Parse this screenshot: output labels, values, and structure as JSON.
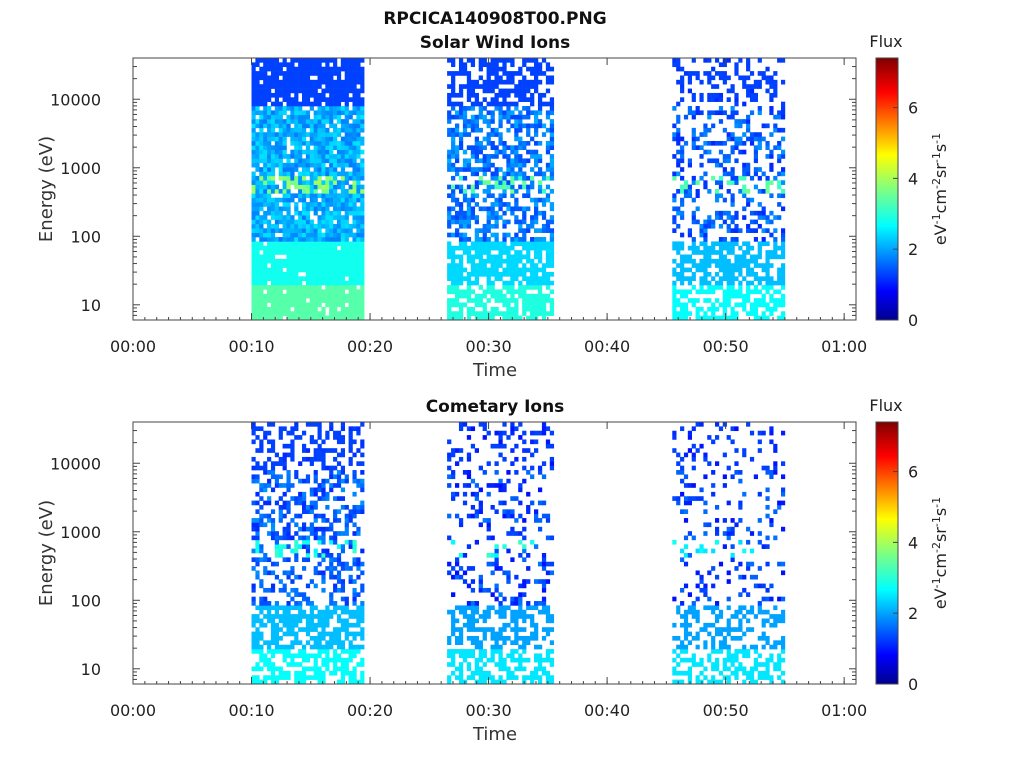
{
  "figure_title": "RPCICA140908T00.PNG",
  "colorbar_unit": "eV-1cm-2sr-1s-1",
  "colormap": [
    "#00008f",
    "#0000ff",
    "#0080ff",
    "#00ffff",
    "#80ff80",
    "#ffff00",
    "#ff8000",
    "#ff0000",
    "#800000"
  ],
  "chart_data": [
    {
      "type": "heatmap",
      "title": "Solar Wind Ions",
      "xlabel": "Time",
      "ylabel": "Energy (eV)",
      "y_scale": "log",
      "xlim": [
        "00:00",
        "01:01"
      ],
      "ylim": [
        6,
        40000
      ],
      "x_ticks": [
        "00:00",
        "00:10",
        "00:20",
        "00:30",
        "00:40",
        "00:50",
        "01:00"
      ],
      "y_ticks": [
        "10",
        "100",
        "1000",
        "10000"
      ],
      "colorbar": {
        "label": "Flux",
        "range": [
          0,
          7.4
        ],
        "ticks": [
          "0",
          "2",
          "4",
          "6"
        ]
      },
      "blocks": [
        {
          "t_start": "00:10",
          "t_end": "00:19:30",
          "typical_flux": 2.2,
          "peak_flux": 4.0,
          "peak_energy_eV": 600
        },
        {
          "t_start": "00:26:30",
          "t_end": "00:35:30",
          "typical_flux": 1.8,
          "peak_flux": 3.6,
          "peak_energy_eV": 600
        },
        {
          "t_start": "00:45:30",
          "t_end": "00:55",
          "typical_flux": 1.6,
          "peak_flux": 3.6,
          "peak_energy_eV": 600
        }
      ]
    },
    {
      "type": "heatmap",
      "title": "Cometary Ions",
      "xlabel": "Time",
      "ylabel": "Energy (eV)",
      "y_scale": "log",
      "xlim": [
        "00:00",
        "01:01"
      ],
      "ylim": [
        6,
        40000
      ],
      "x_ticks": [
        "00:00",
        "00:10",
        "00:20",
        "00:30",
        "00:40",
        "00:50",
        "01:00"
      ],
      "y_ticks": [
        "10",
        "100",
        "1000",
        "10000"
      ],
      "colorbar": {
        "label": "Flux",
        "range": [
          0,
          7.4
        ],
        "ticks": [
          "0",
          "2",
          "4",
          "6"
        ]
      },
      "blocks": [
        {
          "t_start": "00:10",
          "t_end": "00:19:30",
          "typical_flux": 1.6,
          "peak_flux": 3.2,
          "peak_energy_eV": 600
        },
        {
          "t_start": "00:26:30",
          "t_end": "00:35:30",
          "typical_flux": 1.4,
          "peak_flux": 3.2,
          "peak_energy_eV": 600
        },
        {
          "t_start": "00:45:30",
          "t_end": "00:55",
          "typical_flux": 1.4,
          "peak_flux": 3.0,
          "peak_energy_eV": 600
        }
      ]
    }
  ]
}
